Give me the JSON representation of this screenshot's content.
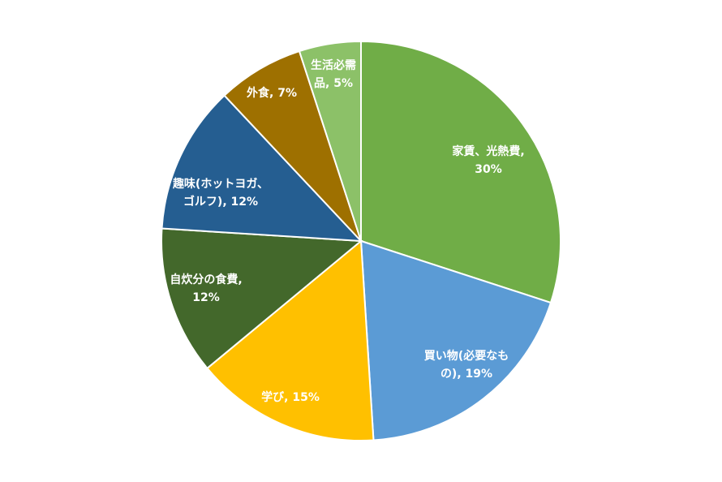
{
  "chart_data": {
    "type": "pie",
    "title": "",
    "slices": [
      {
        "category": "家賃、光熱費",
        "value": 30,
        "label_lines": [
          "家賃、光熱費,",
          "30%"
        ],
        "color": "#70ad47"
      },
      {
        "category": "買い物(必要なもの)",
        "value": 19,
        "label_lines": [
          "買い物(必要なも",
          "の), 19%"
        ],
        "color": "#5b9bd5"
      },
      {
        "category": "学び",
        "value": 15,
        "label_lines": [
          "学び, 15%"
        ],
        "color": "#ffc000"
      },
      {
        "category": "自炊分の食費",
        "value": 12,
        "label_lines": [
          "自炊分の食費,",
          "12%"
        ],
        "color": "#43682b"
      },
      {
        "category": "趣味(ホットヨガ、ゴルフ)",
        "value": 12,
        "label_lines": [
          "趣味(ホットヨガ、",
          "ゴルフ), 12%"
        ],
        "color": "#255e91"
      },
      {
        "category": "外食",
        "value": 7,
        "label_lines": [
          "外食, 7%"
        ],
        "color": "#9e7000"
      },
      {
        "category": "生活必需品",
        "value": 5,
        "label_lines": [
          "生活必需",
          "品, 5%"
        ],
        "color": "#8cc168"
      }
    ],
    "start": "12 o'clock",
    "direction": "clockwise",
    "legend": "none",
    "data_labels": "inside"
  }
}
